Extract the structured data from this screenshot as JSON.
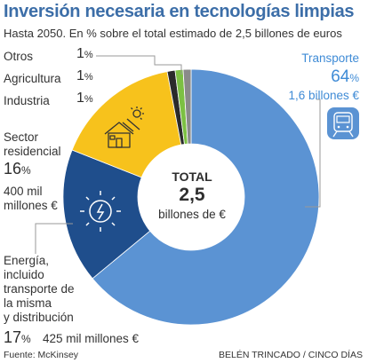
{
  "title": "Inversión necesaria en tecnologías limpias",
  "subtitle": "Hasta 2050. En % sobre el total estimado de 2,5 billones de euros",
  "chart_data": {
    "type": "pie",
    "style": "donut",
    "unit": "%",
    "total_label": "TOTAL",
    "total_value": "2,5",
    "total_unit": "billones de €",
    "slices": [
      {
        "name": "Transporte",
        "value": 64,
        "value_label": "64%",
        "amount": "1,6 billones €",
        "color": "#5b93d3"
      },
      {
        "name": "Energía, incluido transporte de la misma y distribución",
        "value": 17,
        "value_label": "17%",
        "amount": "425 mil millones €",
        "color": "#1f4e8c"
      },
      {
        "name": "Sector residencial",
        "value": 16,
        "value_label": "16%",
        "amount": "400 mil millones €",
        "color": "#f7c21c"
      },
      {
        "name": "Industria",
        "value": 1,
        "value_label": "1%",
        "color": "#2b2b2b"
      },
      {
        "name": "Agricultura",
        "value": 1,
        "value_label": "1%",
        "color": "#7cc043"
      },
      {
        "name": "Otros",
        "value": 1,
        "value_label": "1%",
        "color": "#8a8a8a"
      }
    ]
  },
  "labels": {
    "otros": {
      "name": "Otros",
      "pct": "1",
      "sym": "%"
    },
    "agricultura": {
      "name": "Agricultura",
      "pct": "1",
      "sym": "%"
    },
    "industria": {
      "name": "Industria",
      "pct": "1",
      "sym": "%"
    },
    "residencial": {
      "name_line1": "Sector",
      "name_line2": "residencial",
      "pct": "16",
      "sym": "%",
      "amount_line1": "400 mil",
      "amount_line2": "millones €"
    },
    "energia": {
      "line1": "Energía,",
      "line2": "incluido",
      "line3": "transporte de",
      "line4": "la misma",
      "line5": "y distribución",
      "pct": "17",
      "sym": "%",
      "amount": "425 mil millones €"
    },
    "transporte": {
      "name": "Transporte",
      "pct": "64",
      "sym": "%",
      "amount": "1,6 billones €"
    }
  },
  "footer": {
    "source": "Fuente: McKinsey",
    "credit": "BELÉN TRINCADO / CINCO DÍAS"
  },
  "icons": [
    "house-solar-icon",
    "sun-energy-icon",
    "train-icon"
  ]
}
